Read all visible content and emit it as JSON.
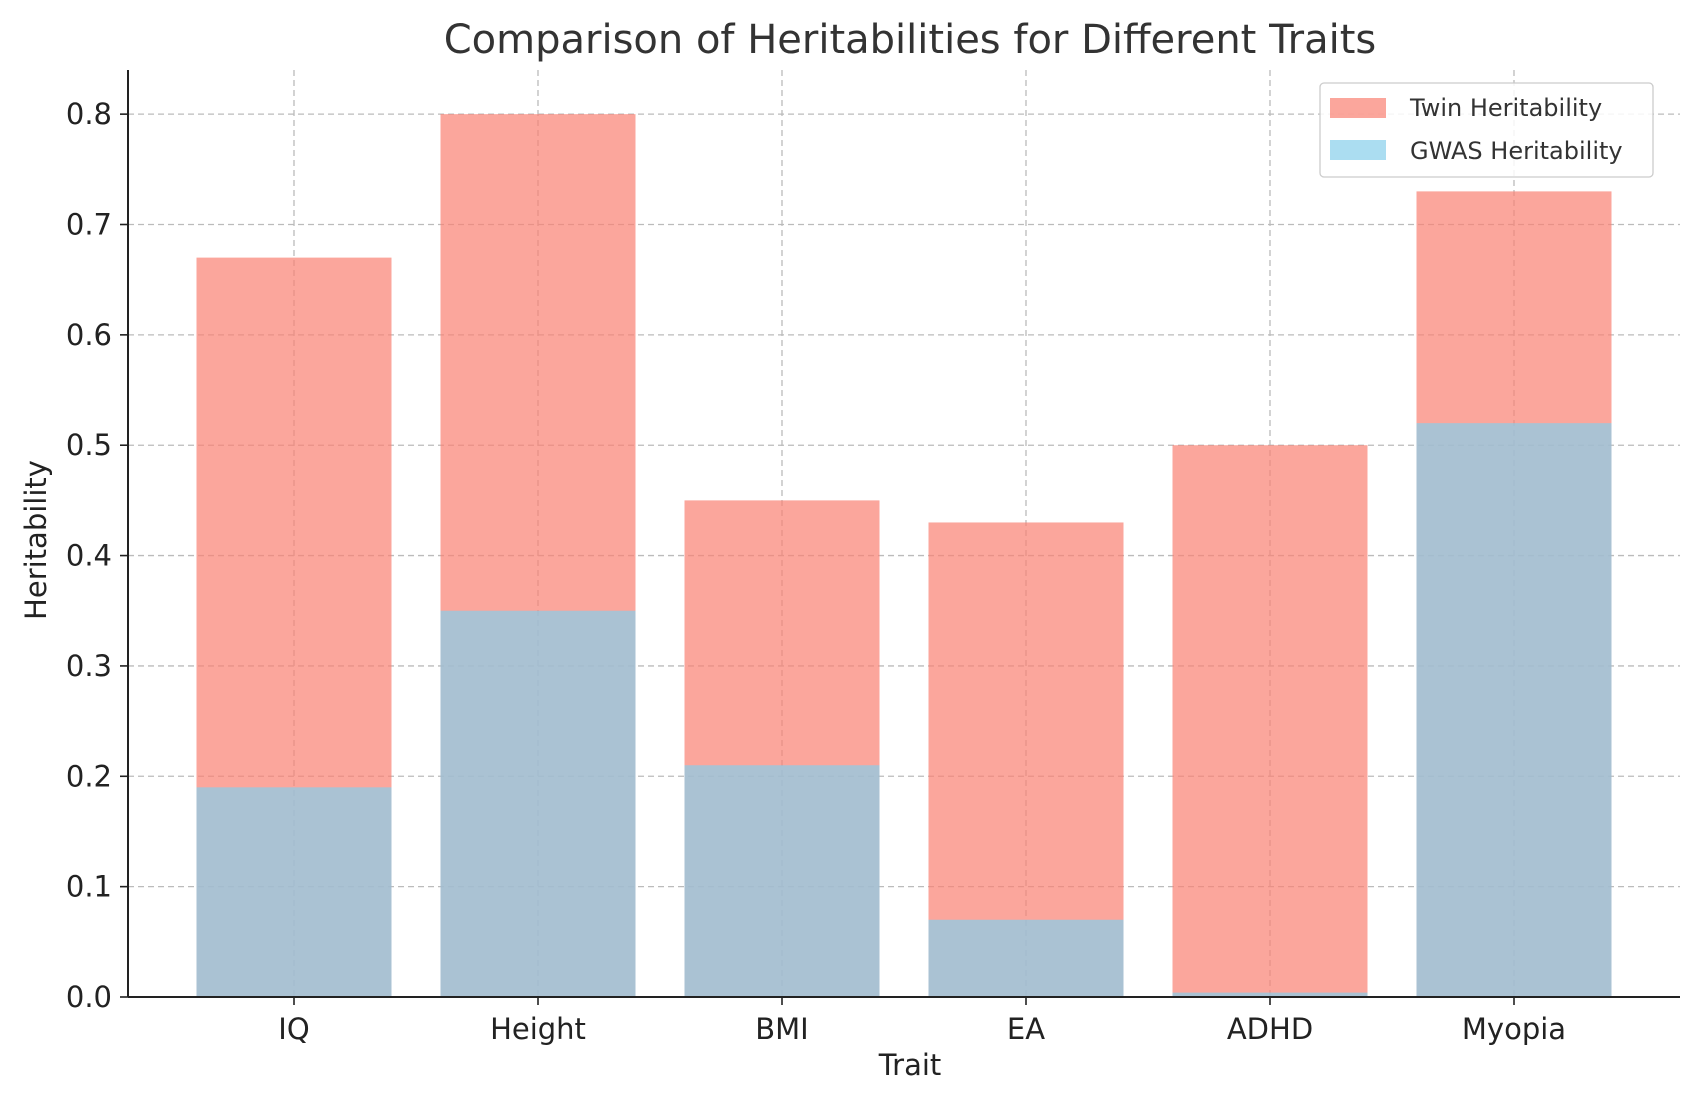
{
  "chart_data": {
    "type": "bar",
    "title": "Comparison of Heritabilities for Different Traits",
    "xlabel": "Trait",
    "ylabel": "Heritability",
    "categories": [
      "IQ",
      "Height",
      "BMI",
      "EA",
      "ADHD",
      "Myopia"
    ],
    "series": [
      {
        "name": "Twin Heritability",
        "values": [
          0.67,
          0.8,
          0.45,
          0.43,
          0.5,
          0.73
        ],
        "color": "#FA8072",
        "opacity": 0.7
      },
      {
        "name": "GWAS Heritability",
        "values": [
          0.19,
          0.35,
          0.21,
          0.07,
          0.004,
          0.52
        ],
        "color": "#87CEEB",
        "opacity": 0.7
      }
    ],
    "ylim": [
      0,
      0.84
    ],
    "yticks": [
      0.0,
      0.1,
      0.2,
      0.3,
      0.4,
      0.5,
      0.6,
      0.7,
      0.8
    ],
    "ytick_labels": [
      "0.0",
      "0.1",
      "0.2",
      "0.3",
      "0.4",
      "0.5",
      "0.6",
      "0.7",
      "0.8"
    ],
    "grid": true,
    "legend": "top-right",
    "overlay": true
  }
}
